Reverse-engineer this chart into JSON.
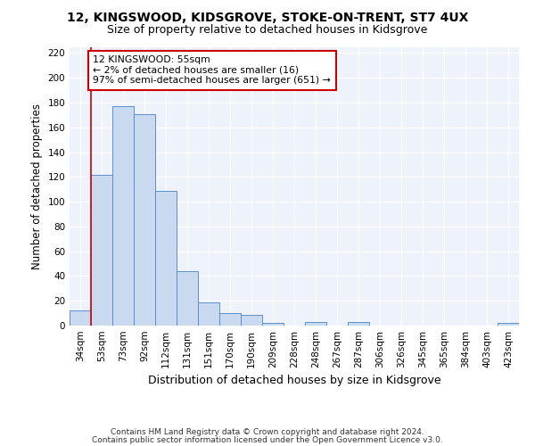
{
  "title": "12, KINGSWOOD, KIDSGROVE, STOKE-ON-TRENT, ST7 4UX",
  "subtitle": "Size of property relative to detached houses in Kidsgrove",
  "xlabel": "Distribution of detached houses by size in Kidsgrove",
  "ylabel": "Number of detached properties",
  "categories": [
    "34sqm",
    "53sqm",
    "73sqm",
    "92sqm",
    "112sqm",
    "131sqm",
    "151sqm",
    "170sqm",
    "190sqm",
    "209sqm",
    "228sqm",
    "248sqm",
    "267sqm",
    "287sqm",
    "306sqm",
    "326sqm",
    "345sqm",
    "365sqm",
    "384sqm",
    "403sqm",
    "423sqm"
  ],
  "values": [
    12,
    122,
    177,
    171,
    109,
    44,
    19,
    10,
    9,
    2,
    0,
    3,
    0,
    3,
    0,
    0,
    0,
    0,
    0,
    0,
    2
  ],
  "bar_color": "#c8d9f0",
  "bar_edge_color": "#5b8fcc",
  "vline_color": "#cc0000",
  "vline_x_idx": 0.5,
  "annotation_text": "12 KINGSWOOD: 55sqm\n← 2% of detached houses are smaller (16)\n97% of semi-detached houses are larger (651) →",
  "ylim": [
    0,
    225
  ],
  "yticks": [
    0,
    20,
    40,
    60,
    80,
    100,
    120,
    140,
    160,
    180,
    200,
    220
  ],
  "bg_color": "#eef2fa",
  "fig_bg_color": "#ffffff",
  "footer_line1": "Contains HM Land Registry data © Crown copyright and database right 2024.",
  "footer_line2": "Contains public sector information licensed under the Open Government Licence v3.0."
}
